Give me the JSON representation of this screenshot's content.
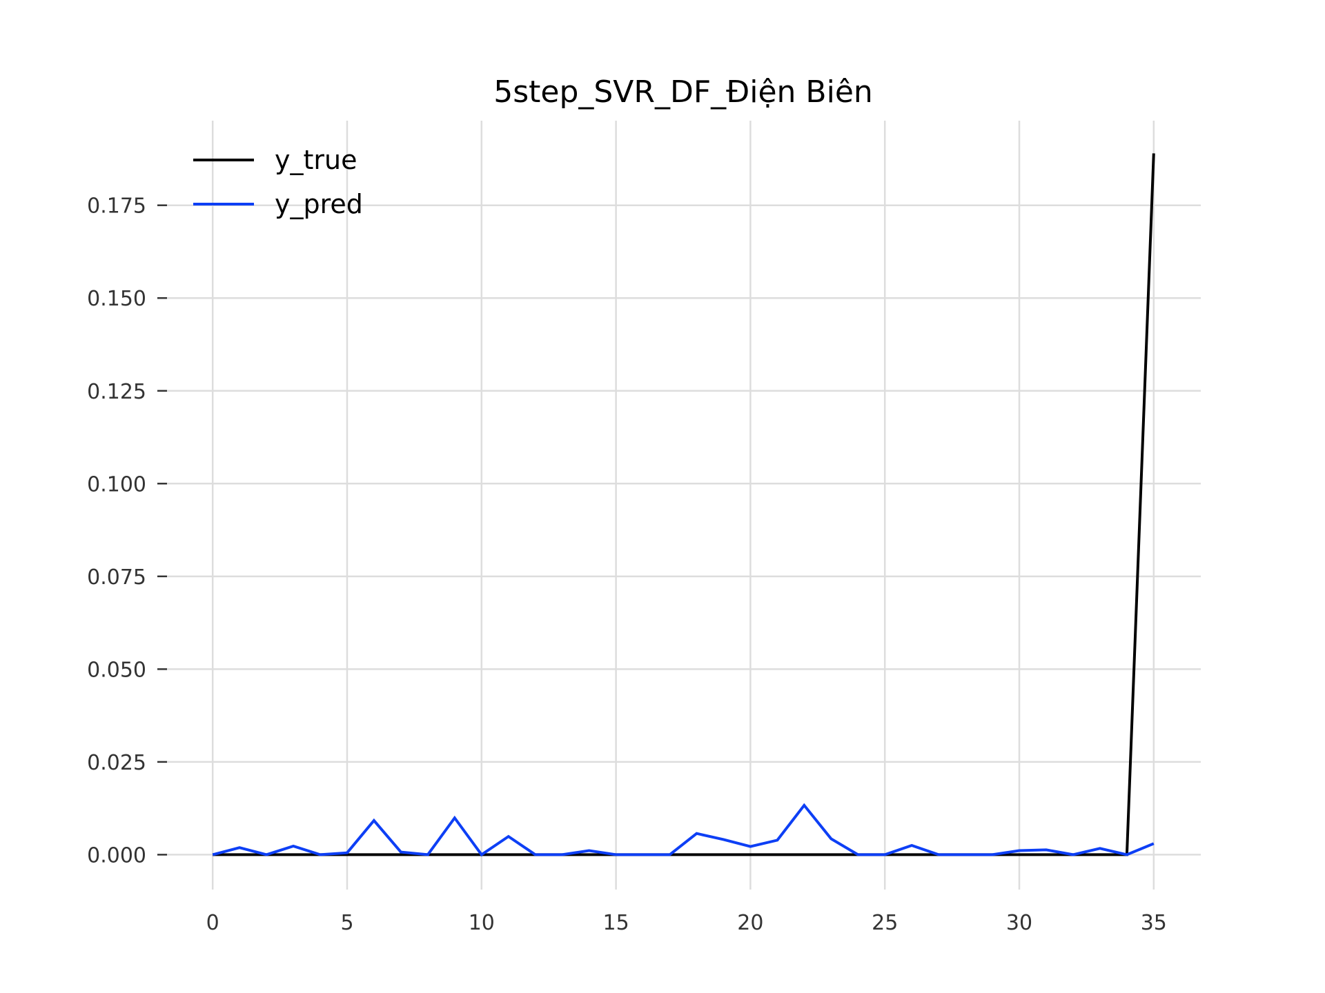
{
  "chart_data": {
    "type": "line",
    "title": "5step_SVR_DF_Điện Biên",
    "xlabel": "",
    "ylabel": "",
    "xlim": [
      -1.75,
      36.75
    ],
    "ylim": [
      -0.0094,
      0.1978
    ],
    "x_ticks": [
      "0",
      "5",
      "10",
      "15",
      "20",
      "25",
      "30",
      "35"
    ],
    "y_ticks": [
      "0.000",
      "0.025",
      "0.050",
      "0.075",
      "0.100",
      "0.125",
      "0.150",
      "0.175"
    ],
    "grid": true,
    "legend_position": "top-left",
    "x": [
      0,
      1,
      2,
      3,
      4,
      5,
      6,
      7,
      8,
      9,
      10,
      11,
      12,
      13,
      14,
      15,
      16,
      17,
      18,
      19,
      20,
      21,
      22,
      23,
      24,
      25,
      26,
      27,
      28,
      29,
      30,
      31,
      32,
      33,
      34,
      35
    ],
    "series": [
      {
        "name": "y_true",
        "color": "#000000",
        "values": [
          0,
          0,
          0,
          0,
          0,
          0,
          0,
          0,
          0,
          0,
          0,
          0,
          0,
          0,
          0,
          0,
          0,
          0,
          0,
          0,
          0,
          0,
          0,
          0,
          0,
          0,
          0,
          0,
          0,
          0,
          0,
          0,
          0,
          0,
          0,
          0.189
        ]
      },
      {
        "name": "y_pred",
        "color": "#0d3ff5",
        "values": [
          0,
          0.0019,
          0,
          0.0023,
          0,
          0.0005,
          0.0092,
          0.0007,
          0,
          0.0099,
          0,
          0.0049,
          0,
          0,
          0.0011,
          0,
          0,
          0,
          0.0057,
          0.0041,
          0.0022,
          0.0039,
          0.0133,
          0.0043,
          0,
          0,
          0.0025,
          0,
          0,
          0,
          0.0011,
          0.0013,
          0,
          0.0017,
          0,
          0.003
        ]
      }
    ]
  }
}
